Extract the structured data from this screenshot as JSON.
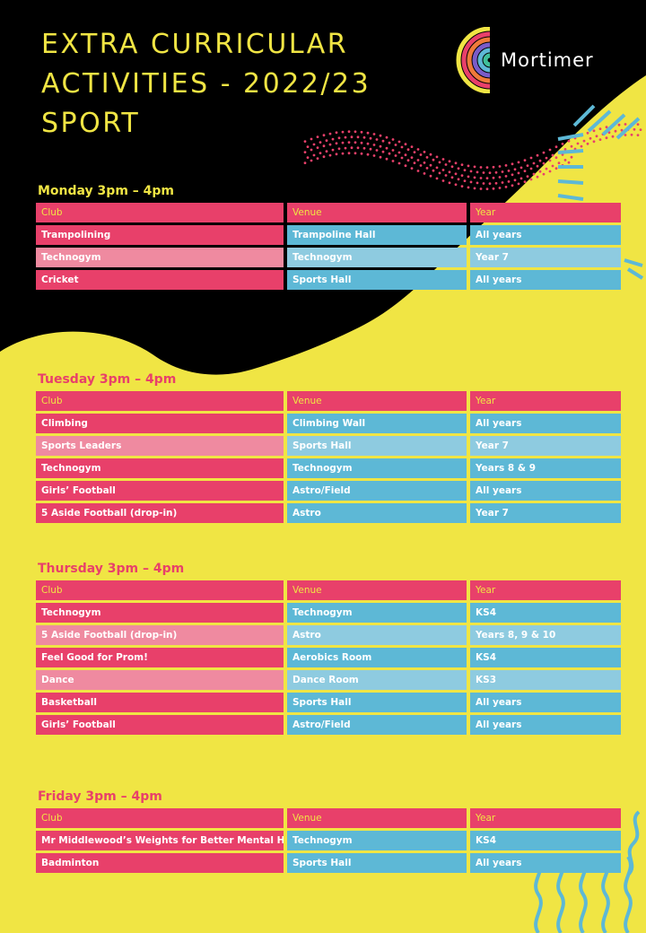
{
  "title": {
    "line1": "EXTRA  CURRICULAR",
    "line2": "ACTIVITIES  -  2022/23",
    "line3": "SPORT"
  },
  "logo": {
    "text": "Mortimer",
    "icon": "rainbow-arc-icon"
  },
  "colors": {
    "yellow": "#f0e544",
    "black": "#000000",
    "pink": "#e8406a",
    "pink_light": "#ef8aa0",
    "blue": "#5db8d6",
    "blue_light": "#8ecbe0",
    "day_monday": "#f0e544",
    "day_other": "#e8406a"
  },
  "headers": {
    "club": "Club",
    "venue": "Venue",
    "year": "Year"
  },
  "sessions": [
    {
      "day": "Monday 3pm – 4pm",
      "rows": [
        {
          "club": "Trampolining",
          "venue": "Trampoline Hall",
          "year": "All years",
          "shade": "dark"
        },
        {
          "club": "Technogym",
          "venue": "Technogym",
          "year": "Year 7",
          "shade": "light"
        },
        {
          "club": "Cricket",
          "venue": "Sports Hall",
          "year": "All years",
          "shade": "dark"
        }
      ]
    },
    {
      "day": "Tuesday 3pm – 4pm",
      "rows": [
        {
          "club": "Climbing",
          "venue": "Climbing Wall",
          "year": "All years",
          "shade": "dark"
        },
        {
          "club": "Sports Leaders",
          "venue": "Sports Hall",
          "year": "Year 7",
          "shade": "light"
        },
        {
          "club": "Technogym",
          "venue": "Technogym",
          "year": "Years 8 & 9",
          "shade": "dark"
        },
        {
          "club": "Girls’ Football",
          "venue": "Astro/Field",
          "year": "All years",
          "shade": "dark"
        },
        {
          "club": "5 Aside Football (drop-in)",
          "venue": "Astro",
          "year": "Year 7",
          "shade": "dark"
        }
      ]
    },
    {
      "day": "Thursday  3pm – 4pm",
      "rows": [
        {
          "club": "Technogym",
          "venue": "Technogym",
          "year": "KS4",
          "shade": "dark"
        },
        {
          "club": "5 Aside Football (drop-in)",
          "venue": "Astro",
          "year": "Years  8, 9 & 10",
          "shade": "light"
        },
        {
          "club": "Feel Good for Prom!",
          "venue": "Aerobics Room",
          "year": "KS4",
          "shade": "dark"
        },
        {
          "club": "Dance",
          "venue": "Dance Room",
          "year": "KS3",
          "shade": "light"
        },
        {
          "club": "Basketball",
          "venue": "Sports Hall",
          "year": "All years",
          "shade": "dark"
        },
        {
          "club": "Girls’ Football",
          "venue": "Astro/Field",
          "year": "All years",
          "shade": "dark"
        }
      ]
    },
    {
      "day": "Friday 3pm – 4pm",
      "rows": [
        {
          "club": "Mr Middlewood’s  Weights for Better Mental Health",
          "venue": "Technogym",
          "year": "KS4",
          "shade": "dark"
        },
        {
          "club": "Badminton",
          "venue": "Sports Hall",
          "year": "All years",
          "shade": "dark"
        }
      ]
    }
  ]
}
